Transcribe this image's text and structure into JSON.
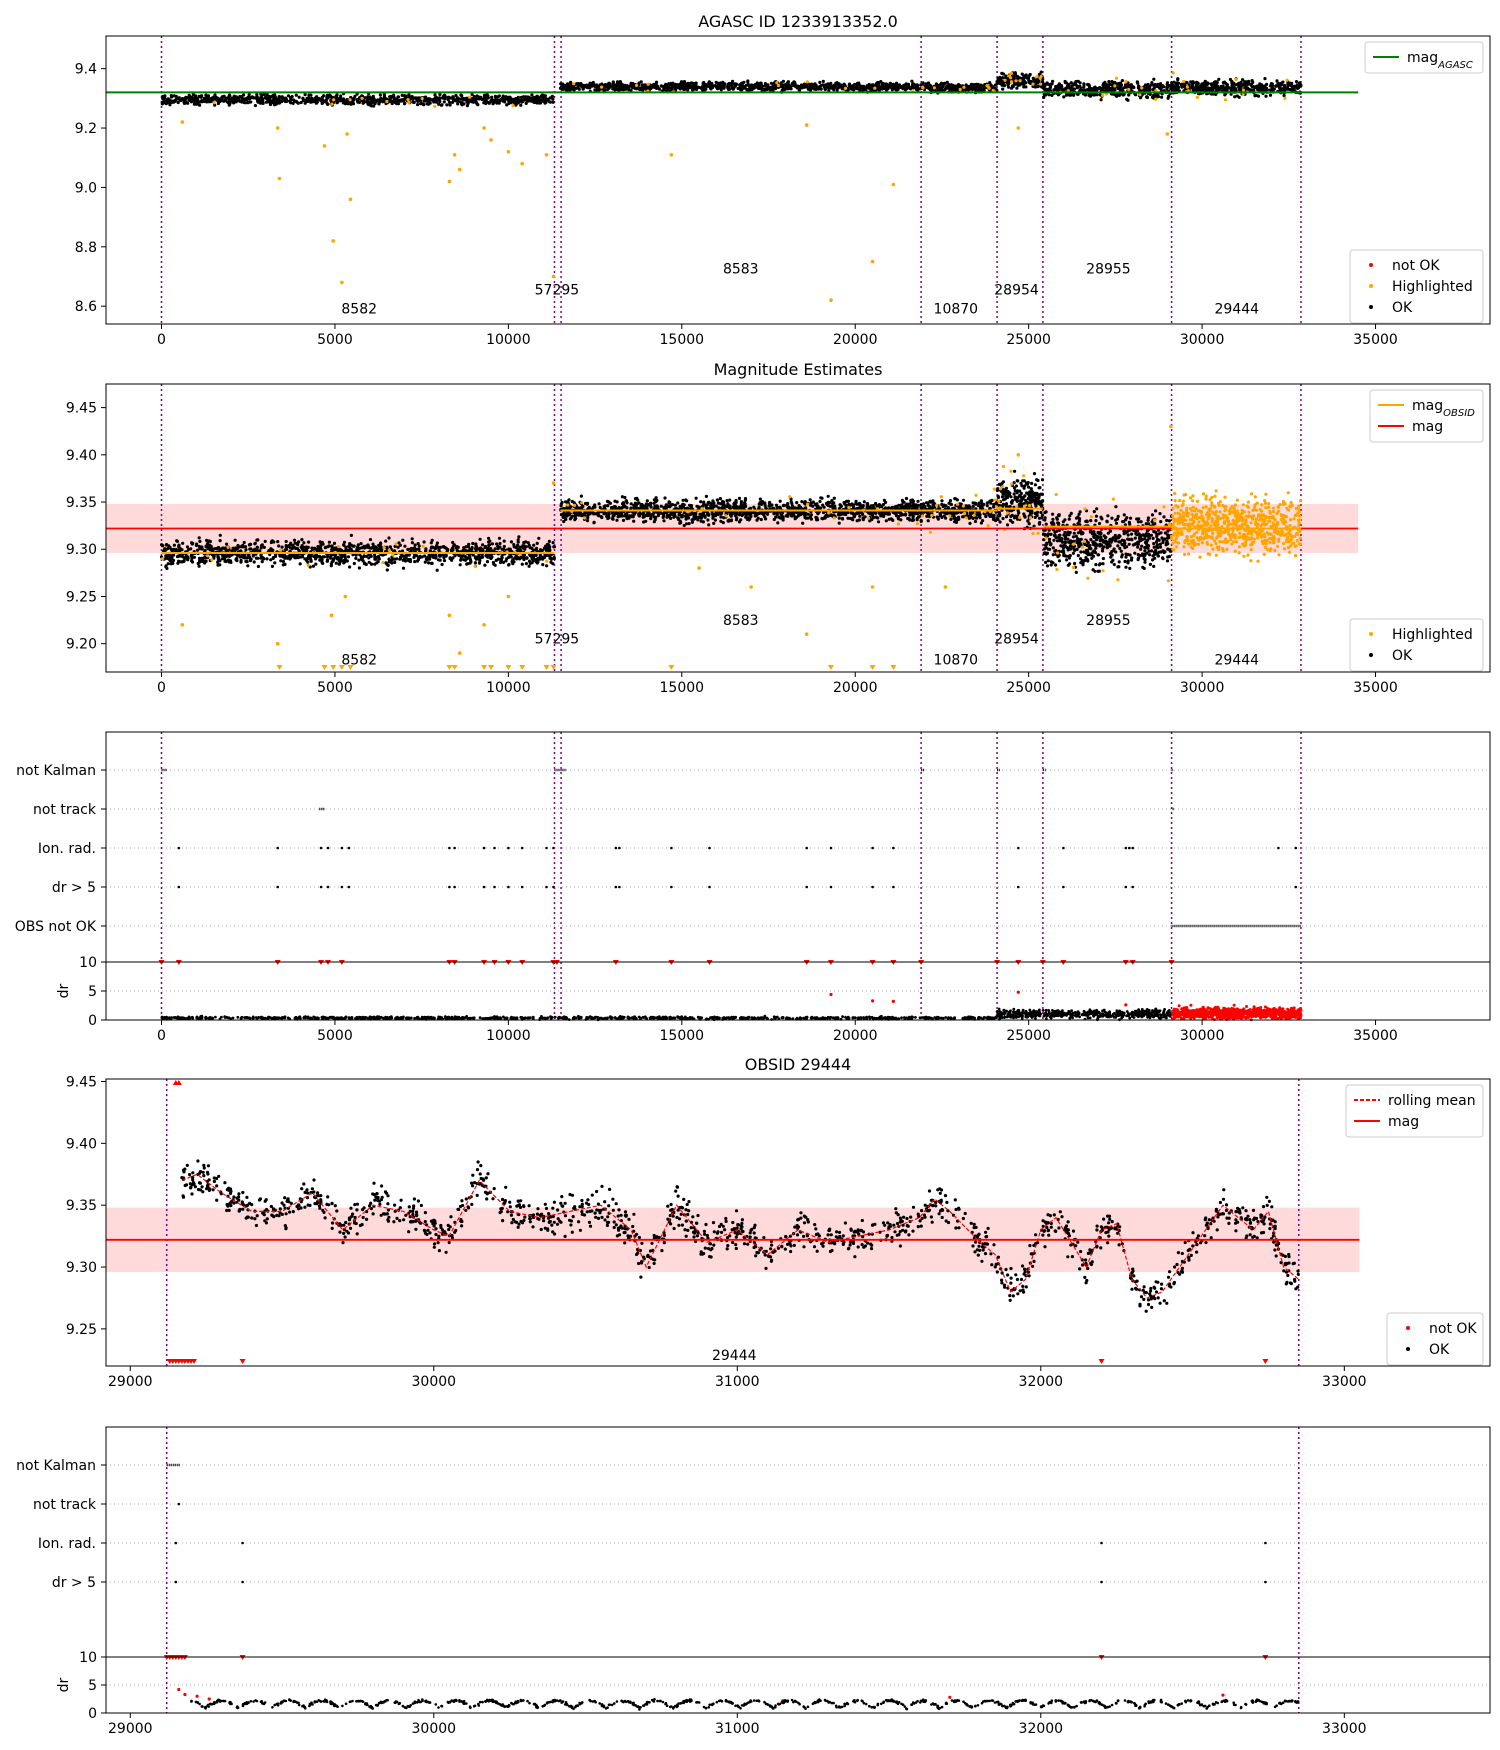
{
  "figure_title": "AGASC ID 1233913352.0",
  "colors": {
    "ok": "#000000",
    "highlighted": "#ffa500",
    "not_ok": "#ff0000",
    "agasc_line": "#008000",
    "mag_line": "#ff0000",
    "mag_band": "#ffdada",
    "obsid_line": "#ffa500",
    "obs_boundary": "#800080",
    "grid": "#b0b0b0"
  },
  "chart_data": [
    {
      "id": "agasc_panel",
      "type": "scatter",
      "title": "AGASC ID 1233913352.0",
      "xlabel": "",
      "ylabel": "",
      "xlim": [
        -1600,
        38300
      ],
      "ylim": [
        8.54,
        9.51
      ],
      "xticks": [
        0,
        5000,
        10000,
        15000,
        20000,
        25000,
        30000,
        35000
      ],
      "yticks": [
        8.6,
        8.8,
        9.0,
        9.2,
        9.4
      ],
      "ytick_format": 1,
      "obs_boundaries": [
        0,
        11330,
        11520,
        21900,
        24090,
        25410,
        29120,
        32850
      ],
      "obs_labels": [
        {
          "text": "8582",
          "x": 5700,
          "y": 8.575
        },
        {
          "text": "57295",
          "x": 11400,
          "y": 8.64
        },
        {
          "text": "8583",
          "x": 16700,
          "y": 8.71
        },
        {
          "text": "10870",
          "x": 22900,
          "y": 8.575
        },
        {
          "text": "28954",
          "x": 24650,
          "y": 8.64
        },
        {
          "text": "28955",
          "x": 27300,
          "y": 8.71
        },
        {
          "text": "29444",
          "x": 31000,
          "y": 8.575
        }
      ],
      "lines": [
        {
          "name": "mag_AGASC",
          "y": 9.32,
          "x": [
            -1600,
            34500
          ],
          "color": "#008000"
        }
      ],
      "ok_bands": [
        {
          "x": [
            0,
            11330
          ],
          "center": 9.295,
          "spread": 0.02,
          "n": 900
        },
        {
          "x": [
            11500,
            21900
          ],
          "center": 9.34,
          "spread": 0.018,
          "n": 900
        },
        {
          "x": [
            21900,
            24090
          ],
          "center": 9.335,
          "spread": 0.018,
          "n": 200
        },
        {
          "x": [
            24090,
            25410
          ],
          "center": 9.36,
          "spread": 0.03,
          "n": 160
        },
        {
          "x": [
            25410,
            29120
          ],
          "center": 9.33,
          "spread": 0.035,
          "n": 400
        },
        {
          "x": [
            29120,
            32850
          ],
          "center": 9.335,
          "spread": 0.03,
          "n": 400
        }
      ],
      "highlighted_points": [
        [
          600,
          9.22
        ],
        [
          3350,
          9.2
        ],
        [
          3400,
          9.03
        ],
        [
          4700,
          9.14
        ],
        [
          4950,
          8.82
        ],
        [
          5200,
          8.68
        ],
        [
          5350,
          9.18
        ],
        [
          5450,
          8.96
        ],
        [
          8300,
          9.02
        ],
        [
          8450,
          9.11
        ],
        [
          8600,
          9.06
        ],
        [
          9300,
          9.2
        ],
        [
          9500,
          9.16
        ],
        [
          10000,
          9.12
        ],
        [
          10400,
          9.08
        ],
        [
          11100,
          9.11
        ],
        [
          11300,
          8.7
        ],
        [
          14700,
          9.11
        ],
        [
          18600,
          9.21
        ],
        [
          19300,
          8.62
        ],
        [
          20500,
          8.75
        ],
        [
          21100,
          9.01
        ],
        [
          24700,
          9.2
        ],
        [
          29000,
          9.18
        ]
      ],
      "legend": {
        "position": "top-right",
        "entries": [
          "mag_AGASC"
        ]
      },
      "legend2": {
        "position": "bottom-right",
        "entries": [
          "not OK",
          "Highlighted",
          "OK"
        ]
      }
    },
    {
      "id": "estimates_panel",
      "type": "scatter",
      "title": "Magnitude Estimates",
      "xlabel": "",
      "ylabel": "",
      "xlim": [
        -1600,
        38300
      ],
      "ylim": [
        9.17,
        9.475
      ],
      "xticks": [
        0,
        5000,
        10000,
        15000,
        20000,
        25000,
        30000,
        35000
      ],
      "yticks": [
        9.2,
        9.25,
        9.3,
        9.35,
        9.4,
        9.45
      ],
      "ytick_format": 2,
      "mag": 9.322,
      "mag_band": [
        9.296,
        9.348
      ],
      "obs_boundaries": [
        0,
        11330,
        11520,
        21900,
        24090,
        25410,
        29120,
        32850
      ],
      "obs_labels": [
        {
          "text": "8582",
          "x": 5700,
          "y": 9.178
        },
        {
          "text": "57295",
          "x": 11400,
          "y": 9.2
        },
        {
          "text": "8583",
          "x": 16700,
          "y": 9.22
        },
        {
          "text": "10870",
          "x": 22900,
          "y": 9.178
        },
        {
          "text": "28954",
          "x": 24650,
          "y": 9.2
        },
        {
          "text": "28955",
          "x": 27300,
          "y": 9.22
        },
        {
          "text": "29444",
          "x": 31000,
          "y": 9.178
        }
      ],
      "obsid_means": [
        {
          "x": [
            0,
            11330
          ],
          "y": 9.296
        },
        {
          "x": [
            11500,
            21900
          ],
          "y": 9.341
        },
        {
          "x": [
            21900,
            24090
          ],
          "y": 9.341
        },
        {
          "x": [
            24090,
            25410
          ],
          "y": 9.343
        },
        {
          "x": [
            25410,
            29120
          ],
          "y": 9.324
        },
        {
          "x": [
            29120,
            32850
          ],
          "y": 9.322
        }
      ],
      "ok_bands": [
        {
          "x": [
            0,
            11330
          ],
          "center": 9.296,
          "spread": 0.016,
          "n": 1200
        },
        {
          "x": [
            11500,
            21900
          ],
          "center": 9.341,
          "spread": 0.014,
          "n": 1200
        },
        {
          "x": [
            21900,
            24090
          ],
          "center": 9.341,
          "spread": 0.014,
          "n": 260
        },
        {
          "x": [
            24090,
            25410
          ],
          "center": 9.35,
          "spread": 0.03,
          "n": 260
        },
        {
          "x": [
            25410,
            29120
          ],
          "center": 9.31,
          "spread": 0.035,
          "n": 600
        }
      ],
      "highlighted_bands": [
        {
          "x": [
            29120,
            32850
          ],
          "center": 9.325,
          "spread": 0.035,
          "n": 700
        }
      ],
      "highlighted_points": [
        [
          600,
          9.22
        ],
        [
          3350,
          9.2
        ],
        [
          4900,
          9.23
        ],
        [
          5300,
          9.25
        ],
        [
          8300,
          9.23
        ],
        [
          8600,
          9.19
        ],
        [
          9300,
          9.22
        ],
        [
          10000,
          9.25
        ],
        [
          17000,
          9.26
        ],
        [
          18600,
          9.21
        ],
        [
          20500,
          9.26
        ],
        [
          22600,
          9.26
        ],
        [
          15500,
          9.28
        ],
        [
          11300,
          9.37
        ],
        [
          24700,
          9.4
        ],
        [
          29100,
          9.43
        ]
      ],
      "clipped_markers": [
        3400,
        4700,
        4950,
        5200,
        5450,
        8300,
        8450,
        9300,
        9500,
        10000,
        10400,
        11100,
        11300,
        14700,
        19300,
        20500,
        21100
      ],
      "legend": {
        "position": "top-right",
        "entries": [
          "mag_OBSID",
          "mag"
        ]
      },
      "legend2": {
        "position": "bottom-right",
        "entries": [
          "Highlighted",
          "OK"
        ]
      }
    },
    {
      "id": "flags_panel_full",
      "type": "scatter",
      "xlim": [
        -1600,
        38300
      ],
      "xticks": [
        0,
        5000,
        10000,
        15000,
        20000,
        25000,
        30000,
        35000
      ],
      "obs_boundaries": [
        0,
        11330,
        11520,
        21900,
        24090,
        25410,
        29120,
        32850
      ],
      "flag_rows": [
        "not Kalman",
        "not track",
        "Ion. rad.",
        "dr > 5",
        "OBS not OK"
      ],
      "flag_points": {
        "not Kalman": [
          [
            0,
            150
          ],
          [
            11330,
            350
          ],
          [
            21900,
            100
          ],
          [
            24090,
            80
          ],
          [
            25410,
            80
          ],
          [
            29120,
            60
          ]
        ],
        "not track": [
          [
            4550,
            150
          ],
          [
            29150,
            40
          ]
        ],
        "Ion. rad.": [
          [
            500
          ],
          [
            3350
          ],
          [
            4600
          ],
          [
            4800
          ],
          [
            5200
          ],
          [
            5400
          ],
          [
            8300
          ],
          [
            8450
          ],
          [
            9300
          ],
          [
            9600
          ],
          [
            10000
          ],
          [
            10400
          ],
          [
            11100
          ],
          [
            11300
          ],
          [
            13100
          ],
          [
            13200
          ],
          [
            14700
          ],
          [
            15800
          ],
          [
            18600
          ],
          [
            19300
          ],
          [
            20500
          ],
          [
            21100
          ],
          [
            24700
          ],
          [
            26000
          ],
          [
            27800
          ],
          [
            27900
          ],
          [
            28000
          ],
          [
            32200
          ],
          [
            32700
          ]
        ],
        "dr > 5": [
          [
            500
          ],
          [
            3350
          ],
          [
            4600
          ],
          [
            4800
          ],
          [
            5200
          ],
          [
            5400
          ],
          [
            8300
          ],
          [
            8450
          ],
          [
            9300
          ],
          [
            9600
          ],
          [
            10000
          ],
          [
            10400
          ],
          [
            11100
          ],
          [
            11300
          ],
          [
            13100
          ],
          [
            13200
          ],
          [
            14700
          ],
          [
            15800
          ],
          [
            18600
          ],
          [
            19300
          ],
          [
            20500
          ],
          [
            21100
          ],
          [
            24700
          ],
          [
            26000
          ],
          [
            27800
          ],
          [
            28000
          ],
          [
            32700
          ]
        ],
        "OBS not OK": [
          [
            29120,
            3730
          ]
        ]
      },
      "dr": {
        "ylabel": "dr",
        "yticks": [
          0,
          5,
          10
        ],
        "ylim": [
          0,
          10
        ],
        "ok_bands": [
          {
            "x": [
              0,
              24090
            ],
            "center": 0.35,
            "spread": 0.2,
            "n": 900
          },
          {
            "x": [
              24090,
              29120
            ],
            "center": 1.0,
            "spread": 0.6,
            "n": 500
          }
        ],
        "notok_bands": [
          {
            "x": [
              29120,
              32850
            ],
            "center": 1.2,
            "spread": 0.8,
            "n": 900
          }
        ],
        "notok_points": [
          [
            19300,
            4.4
          ],
          [
            20500,
            3.3
          ],
          [
            21100,
            3.2
          ],
          [
            24700,
            4.8
          ],
          [
            27800,
            2.6
          ]
        ],
        "capped_points": [
          0,
          11300,
          11400,
          21900,
          24090,
          25410,
          500,
          3350,
          4600,
          4800,
          5200,
          8300,
          8450,
          9300,
          9600,
          10000,
          10400,
          13100,
          14700,
          15800,
          18600,
          19300,
          20500,
          21100,
          24700,
          26000,
          27800,
          28000,
          29120
        ]
      }
    },
    {
      "id": "obsid_panel",
      "type": "line",
      "title": "OBSID 29444",
      "xlabel": "",
      "ylabel": "",
      "xlim": [
        28920,
        33480
      ],
      "ylim": [
        9.22,
        9.452
      ],
      "xticks": [
        29000,
        30000,
        31000,
        32000,
        33000
      ],
      "yticks": [
        9.25,
        9.3,
        9.35,
        9.4,
        9.45
      ],
      "ytick_format": 2,
      "mag": 9.322,
      "mag_band": [
        9.296,
        9.348
      ],
      "mag_line_x": [
        28920,
        33050
      ],
      "obs_boundaries": [
        29120,
        32850
      ],
      "obs_labels": [
        {
          "text": "29444",
          "x": 30990,
          "y": 9.225
        }
      ],
      "rolling_mean": {
        "x": [
          29170,
          29220,
          29300,
          29400,
          29500,
          29600,
          29700,
          29800,
          29900,
          30000,
          30050,
          30150,
          30250,
          30350,
          30450,
          30550,
          30650,
          30700,
          30800,
          30900,
          31000,
          31100,
          31200,
          31300,
          31400,
          31500,
          31600,
          31650,
          31700,
          31800,
          31850,
          31900,
          31950,
          32000,
          32050,
          32100,
          32150,
          32200,
          32250,
          32300,
          32350,
          32400,
          32500,
          32600,
          32700,
          32750,
          32800,
          32850
        ],
        "y": [
          9.37,
          9.375,
          9.36,
          9.345,
          9.345,
          9.36,
          9.33,
          9.35,
          9.345,
          9.33,
          9.325,
          9.37,
          9.345,
          9.34,
          9.345,
          9.35,
          9.33,
          9.3,
          9.35,
          9.32,
          9.33,
          9.31,
          9.33,
          9.32,
          9.325,
          9.33,
          9.34,
          9.355,
          9.345,
          9.32,
          9.31,
          9.28,
          9.29,
          9.33,
          9.34,
          9.32,
          9.3,
          9.33,
          9.335,
          9.29,
          9.275,
          9.28,
          9.315,
          9.35,
          9.33,
          9.345,
          9.3,
          9.29
        ]
      },
      "not_ok_markers": [
        29130,
        29140,
        29150,
        29160,
        29170,
        29180,
        29190,
        29200,
        29210,
        29370,
        32200,
        32740
      ],
      "not_ok_top": [
        29150,
        29160
      ],
      "legend": {
        "position": "top-right",
        "entries": [
          "rolling mean",
          "mag"
        ]
      },
      "legend2": {
        "position": "bottom-right",
        "entries": [
          "not OK",
          "OK"
        ]
      }
    },
    {
      "id": "flags_panel_obsid",
      "type": "scatter",
      "xlim": [
        28920,
        33480
      ],
      "xticks": [
        29000,
        30000,
        31000,
        32000,
        33000
      ],
      "obs_boundaries": [
        29120,
        32850
      ],
      "flag_rows": [
        "not Kalman",
        "not track",
        "Ion. rad.",
        "dr > 5"
      ],
      "flag_points": {
        "not Kalman": [
          [
            29120,
            45
          ]
        ],
        "not track": [
          [
            29160,
            5
          ]
        ],
        "Ion. rad.": [
          [
            29150
          ],
          [
            29370
          ],
          [
            32200
          ],
          [
            32740
          ]
        ],
        "dr > 5": [
          [
            29150
          ],
          [
            29370
          ],
          [
            32200
          ],
          [
            32740
          ]
        ]
      },
      "dr": {
        "ylabel": "dr",
        "yticks": [
          0,
          5,
          10
        ],
        "ylim": [
          0,
          10
        ],
        "capped_points": [
          29120,
          29130,
          29140,
          29150,
          29160,
          29170,
          29180,
          29370,
          32200,
          32740
        ],
        "notok_points": [
          [
            29160,
            4.2
          ],
          [
            29180,
            3.3
          ],
          [
            29220,
            3.0
          ],
          [
            29260,
            2.5
          ],
          [
            31150,
            2.2
          ],
          [
            31700,
            2.8
          ],
          [
            32050,
            2.2
          ],
          [
            32520,
            2.0
          ],
          [
            32600,
            3.2
          ]
        ]
      }
    }
  ],
  "legend_labels": {
    "mag_agasc": "mag",
    "mag_agasc_sub": "AGASC",
    "mag_obsid": "mag",
    "mag_obsid_sub": "OBSID",
    "mag": "mag",
    "rolling_mean": "rolling mean",
    "not_ok": "not OK",
    "highlighted": "Highlighted",
    "ok": "OK"
  }
}
